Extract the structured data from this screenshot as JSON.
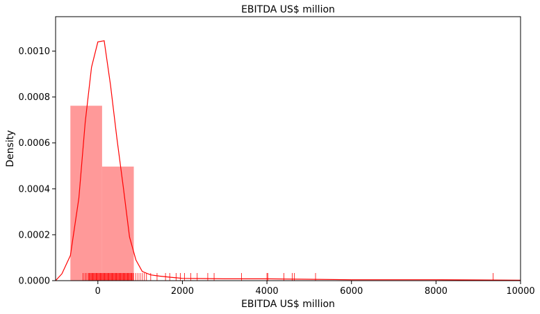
{
  "chart_data": {
    "type": "histogram",
    "title": "EBITDA US$ million",
    "xlabel": "EBITDA US$ million",
    "ylabel": "Density",
    "xlim": [
      -1000,
      10000
    ],
    "ylim": [
      0,
      0.00115
    ],
    "xticks": [
      {
        "value": 0,
        "label": "0"
      },
      {
        "value": 2000,
        "label": "2000"
      },
      {
        "value": 4000,
        "label": "4000"
      },
      {
        "value": 6000,
        "label": "6000"
      },
      {
        "value": 8000,
        "label": "8000"
      },
      {
        "value": 10000,
        "label": "10000"
      }
    ],
    "yticks": [
      {
        "value": 0,
        "label": "0.0000"
      },
      {
        "value": 0.0002,
        "label": "0.0002"
      },
      {
        "value": 0.0004,
        "label": "0.0004"
      },
      {
        "value": 0.0006,
        "label": "0.0006"
      },
      {
        "value": 0.0008,
        "label": "0.0008"
      },
      {
        "value": 0.001,
        "label": "0.0010"
      }
    ],
    "bars": [
      {
        "x0": -650,
        "x1": 100,
        "density": 0.000762
      },
      {
        "x0": 100,
        "x1": 850,
        "density": 0.000497
      }
    ],
    "kde": {
      "x": [
        -1000,
        -850,
        -650,
        -450,
        -300,
        -150,
        0,
        150,
        300,
        450,
        600,
        750,
        900,
        1050,
        1250,
        1450,
        1700,
        2000,
        2500,
        3000,
        4000,
        5000,
        6000,
        7000,
        8000,
        9000,
        10000
      ],
      "y": [
        0,
        3e-05,
        0.00011,
        0.00036,
        0.00069,
        0.00093,
        0.00104,
        0.001045,
        0.00085,
        0.00062,
        0.00041,
        0.00019,
        9e-05,
        4e-05,
        2.5e-05,
        2e-05,
        1.5e-05,
        1e-05,
        9e-06,
        8e-06,
        8e-06,
        6e-06,
        4e-06,
        4e-06,
        4e-06,
        3e-06,
        2e-06
      ]
    },
    "rug": [
      -350,
      -300,
      -260,
      -220,
      -200,
      -180,
      -160,
      -140,
      -120,
      -100,
      -80,
      -60,
      -40,
      -20,
      0,
      20,
      40,
      60,
      80,
      100,
      120,
      140,
      160,
      180,
      200,
      220,
      240,
      260,
      280,
      300,
      320,
      340,
      360,
      380,
      400,
      420,
      440,
      460,
      480,
      500,
      520,
      540,
      560,
      580,
      600,
      620,
      640,
      660,
      680,
      700,
      720,
      740,
      760,
      780,
      800,
      820,
      850,
      900,
      950,
      1000,
      1050,
      1100,
      1150,
      1250,
      1400,
      1600,
      1700,
      1850,
      1950,
      2050,
      2200,
      2350,
      2600,
      2750,
      3400,
      4000,
      4020,
      4400,
      4600,
      4650,
      5150,
      9350
    ],
    "colors": {
      "bar": "#ff9999",
      "line": "#ff0000",
      "rug": "#ff0000",
      "axis": "#000000"
    }
  }
}
